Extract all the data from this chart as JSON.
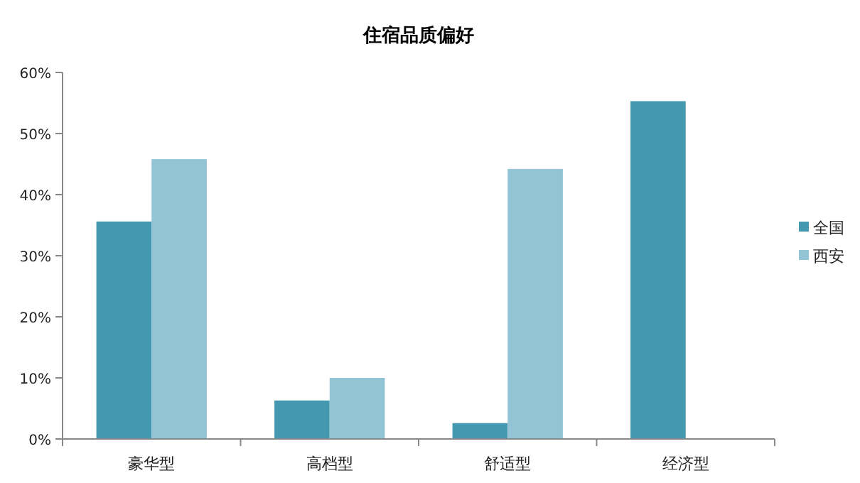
{
  "chart_data": {
    "type": "bar",
    "title": "住宿品质偏好",
    "categories": [
      "豪华型",
      "高档型",
      "舒适型",
      "经济型"
    ],
    "series": [
      {
        "name": "全国",
        "color": "#4499b0",
        "values": [
          35.6,
          6.3,
          2.6,
          55.3
        ]
      },
      {
        "name": "西安",
        "color": "#93c4d5",
        "values": [
          45.8,
          10.0,
          44.2,
          null
        ]
      }
    ],
    "ylim": [
      0,
      60
    ],
    "yticks": [
      {
        "value": 0,
        "label": "0%"
      },
      {
        "value": 10,
        "label": "10%"
      },
      {
        "value": 20,
        "label": "20%"
      },
      {
        "value": 30,
        "label": "30%"
      },
      {
        "value": 40,
        "label": "40%"
      },
      {
        "value": 50,
        "label": "50%"
      },
      {
        "value": 60,
        "label": "60%"
      }
    ],
    "grid": false,
    "legend": "right"
  }
}
